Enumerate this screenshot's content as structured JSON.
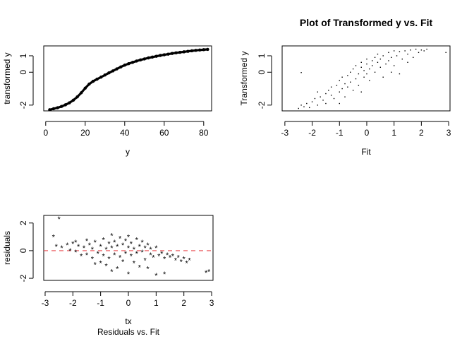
{
  "chart_data": [
    {
      "type": "scatter",
      "title": "",
      "xlabel": "y",
      "ylabel": "transformed y",
      "xlim": [
        -1,
        84
      ],
      "ylim": [
        -2.35,
        1.6
      ],
      "xticks": [
        0,
        20,
        40,
        60,
        80
      ],
      "yticks": [
        -2,
        0,
        1
      ],
      "grid": false,
      "legend": "none",
      "marker": "small dot",
      "note": "monotone increasing curve of many overlapping points",
      "x": [
        2,
        4,
        6,
        8,
        10,
        12,
        14,
        16,
        18,
        20,
        22,
        24,
        26,
        28,
        30,
        32,
        34,
        36,
        38,
        40,
        42,
        44,
        46,
        48,
        50,
        52,
        54,
        56,
        58,
        60,
        62,
        64,
        66,
        68,
        70,
        72,
        74,
        76,
        78,
        80,
        82
      ],
      "y": [
        -2.28,
        -2.22,
        -2.16,
        -2.08,
        -1.98,
        -1.86,
        -1.7,
        -1.5,
        -1.25,
        -0.97,
        -0.72,
        -0.55,
        -0.42,
        -0.3,
        -0.17,
        -0.04,
        0.08,
        0.2,
        0.32,
        0.43,
        0.52,
        0.6,
        0.68,
        0.75,
        0.81,
        0.87,
        0.92,
        0.97,
        1.02,
        1.06,
        1.1,
        1.14,
        1.18,
        1.21,
        1.24,
        1.27,
        1.3,
        1.33,
        1.35,
        1.37,
        1.39
      ]
    },
    {
      "type": "scatter",
      "title": "Plot of Transformed y vs. Fit",
      "xlabel": "Fit",
      "ylabel": "Transformed y",
      "xlim": [
        -3.1,
        3.05
      ],
      "ylim": [
        -2.35,
        1.6
      ],
      "xticks": [
        -3,
        -2,
        -1,
        0,
        1,
        2,
        3
      ],
      "yticks": [
        -2,
        0,
        1
      ],
      "grid": false,
      "legend": "none",
      "marker": "tiny dot",
      "points": [
        [
          -2.5,
          -2.2
        ],
        [
          -2.4,
          -2.0
        ],
        [
          -2.3,
          -2.1
        ],
        [
          -2.2,
          -1.9
        ],
        [
          -2.4,
          -0.02
        ],
        [
          -2.1,
          -2.15
        ],
        [
          -2.0,
          -1.8
        ],
        [
          -1.9,
          -1.6
        ],
        [
          -1.8,
          -2.0
        ],
        [
          -1.7,
          -1.5
        ],
        [
          -1.6,
          -1.7
        ],
        [
          -1.5,
          -1.3
        ],
        [
          -1.5,
          -1.9
        ],
        [
          -1.4,
          -1.1
        ],
        [
          -1.3,
          -1.4
        ],
        [
          -1.3,
          -0.9
        ],
        [
          -1.2,
          -1.6
        ],
        [
          -1.1,
          -0.8
        ],
        [
          -1.0,
          -1.2
        ],
        [
          -1.0,
          -0.5
        ],
        [
          -0.9,
          -1.0
        ],
        [
          -0.9,
          -0.3
        ],
        [
          -0.8,
          -0.7
        ],
        [
          -0.8,
          -1.5
        ],
        [
          -0.7,
          -0.2
        ],
        [
          -0.7,
          -0.9
        ],
        [
          -0.6,
          0.0
        ],
        [
          -0.6,
          -0.6
        ],
        [
          -0.5,
          -1.1
        ],
        [
          -0.5,
          0.2
        ],
        [
          -0.4,
          -0.4
        ],
        [
          -0.4,
          0.4
        ],
        [
          -0.3,
          -0.1
        ],
        [
          -0.3,
          -0.8
        ],
        [
          -0.2,
          0.3
        ],
        [
          -0.2,
          0.6
        ],
        [
          -0.1,
          -0.3
        ],
        [
          -0.1,
          0.1
        ],
        [
          0.0,
          0.5
        ],
        [
          0.0,
          -0.1
        ],
        [
          0.0,
          0.8
        ],
        [
          0.1,
          0.2
        ],
        [
          0.1,
          -0.5
        ],
        [
          0.2,
          0.7
        ],
        [
          0.2,
          0.4
        ],
        [
          0.3,
          0.9
        ],
        [
          0.3,
          0.0
        ],
        [
          0.4,
          0.6
        ],
        [
          0.4,
          1.1
        ],
        [
          0.5,
          0.3
        ],
        [
          0.5,
          0.8
        ],
        [
          0.6,
          1.0
        ],
        [
          0.6,
          -0.3
        ],
        [
          0.7,
          0.5
        ],
        [
          0.8,
          1.2
        ],
        [
          0.8,
          0.7
        ],
        [
          0.9,
          0.9
        ],
        [
          1.0,
          1.3
        ],
        [
          1.0,
          0.4
        ],
        [
          1.1,
          1.0
        ],
        [
          1.2,
          1.25
        ],
        [
          1.2,
          -0.1
        ],
        [
          1.3,
          0.8
        ],
        [
          1.4,
          1.3
        ],
        [
          1.5,
          1.1
        ],
        [
          1.6,
          1.35
        ],
        [
          1.7,
          0.9
        ],
        [
          1.8,
          1.4
        ],
        [
          1.9,
          1.2
        ],
        [
          2.0,
          1.35
        ],
        [
          2.1,
          1.3
        ],
        [
          2.2,
          1.4
        ],
        [
          2.9,
          1.2
        ],
        [
          1.5,
          0.6
        ],
        [
          -1.8,
          -1.2
        ],
        [
          -0.2,
          -1.2
        ],
        [
          0.9,
          0.0
        ],
        [
          -1.0,
          -1.9
        ]
      ]
    },
    {
      "type": "scatter",
      "title": "Residuals vs. Fit",
      "xlabel": "tx",
      "ylabel": "residuals",
      "xlim": [
        -3.05,
        3.05
      ],
      "ylim": [
        -2.15,
        2.55
      ],
      "xticks": [
        -3,
        -2,
        -1,
        0,
        1,
        2,
        3
      ],
      "yticks": [
        -2,
        0,
        2
      ],
      "grid": false,
      "legend": "none",
      "marker": "asterisk",
      "reference_line": {
        "y": 0,
        "style": "dashed",
        "color": "#e8474c"
      },
      "points": [
        [
          -2.5,
          2.3
        ],
        [
          -2.7,
          1.0
        ],
        [
          -2.6,
          0.3
        ],
        [
          -2.4,
          0.2
        ],
        [
          -2.2,
          0.4
        ],
        [
          -2.1,
          0.0
        ],
        [
          -2.0,
          0.5
        ],
        [
          -1.9,
          -0.1
        ],
        [
          -1.8,
          0.3
        ],
        [
          -1.7,
          -0.4
        ],
        [
          -1.6,
          0.2
        ],
        [
          -1.5,
          0.7
        ],
        [
          -1.5,
          -0.3
        ],
        [
          -1.4,
          0.4
        ],
        [
          -1.3,
          -0.6
        ],
        [
          -1.3,
          0.1
        ],
        [
          -1.2,
          0.6
        ],
        [
          -1.1,
          -0.2
        ],
        [
          -1.0,
          0.3
        ],
        [
          -1.0,
          -0.9
        ],
        [
          -0.9,
          0.8
        ],
        [
          -0.9,
          -0.4
        ],
        [
          -0.8,
          0.1
        ],
        [
          -0.8,
          -1.1
        ],
        [
          -0.7,
          0.5
        ],
        [
          -0.7,
          -0.6
        ],
        [
          -0.6,
          0.2
        ],
        [
          -0.6,
          1.1
        ],
        [
          -0.5,
          -0.3
        ],
        [
          -0.5,
          0.6
        ],
        [
          -0.4,
          -1.3
        ],
        [
          -0.4,
          0.3
        ],
        [
          -0.3,
          0.9
        ],
        [
          -0.3,
          -0.5
        ],
        [
          -0.2,
          0.4
        ],
        [
          -0.2,
          -0.8
        ],
        [
          -0.1,
          0.7
        ],
        [
          -0.1,
          -0.2
        ],
        [
          0.0,
          0.2
        ],
        [
          0.0,
          -1.7
        ],
        [
          0.0,
          1.0
        ],
        [
          0.1,
          -0.4
        ],
        [
          0.1,
          0.5
        ],
        [
          0.2,
          0.1
        ],
        [
          0.2,
          -0.9
        ],
        [
          0.3,
          0.8
        ],
        [
          0.3,
          -0.2
        ],
        [
          0.4,
          0.3
        ],
        [
          0.4,
          -1.2
        ],
        [
          0.5,
          0.6
        ],
        [
          0.5,
          -0.1
        ],
        [
          0.6,
          0.2
        ],
        [
          0.6,
          -0.7
        ],
        [
          0.7,
          0.4
        ],
        [
          0.8,
          -0.3
        ],
        [
          0.8,
          0.1
        ],
        [
          0.9,
          -0.5
        ],
        [
          1.0,
          0.2
        ],
        [
          1.0,
          -1.8
        ],
        [
          1.1,
          -0.4
        ],
        [
          1.2,
          -0.2
        ],
        [
          1.3,
          -0.6
        ],
        [
          1.4,
          -0.3
        ],
        [
          1.5,
          -0.5
        ],
        [
          1.6,
          -0.4
        ],
        [
          1.7,
          -0.7
        ],
        [
          1.8,
          -0.5
        ],
        [
          1.9,
          -0.8
        ],
        [
          2.0,
          -0.6
        ],
        [
          2.1,
          -0.9
        ],
        [
          2.2,
          -0.7
        ],
        [
          2.8,
          -1.6
        ],
        [
          2.9,
          -1.5
        ],
        [
          1.3,
          -1.7
        ],
        [
          -1.9,
          0.6
        ],
        [
          -0.6,
          -1.5
        ],
        [
          0.7,
          -1.3
        ],
        [
          -1.2,
          -1.0
        ]
      ]
    }
  ]
}
